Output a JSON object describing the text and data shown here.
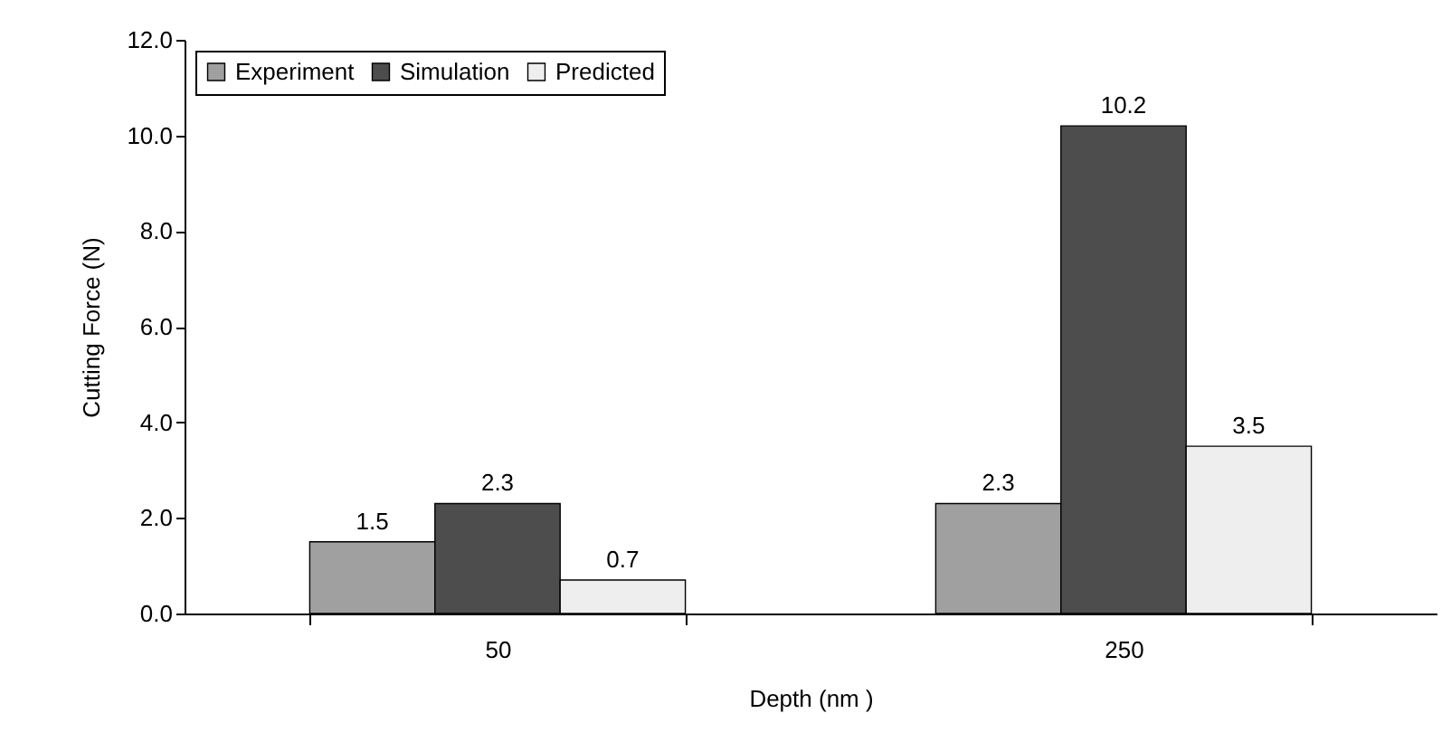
{
  "chart_data": {
    "type": "bar",
    "xlabel": "Depth (nm )",
    "ylabel": "Cutting Force (N)",
    "categories": [
      "50",
      "250"
    ],
    "series": [
      {
        "name": "Experiment",
        "color": "#a0a0a0",
        "values": [
          1.5,
          2.3
        ]
      },
      {
        "name": "Simulation",
        "color": "#4d4d4d",
        "values": [
          2.3,
          10.2
        ]
      },
      {
        "name": "Predicted",
        "color": "#eeeeee",
        "values": [
          0.7,
          3.5
        ]
      }
    ],
    "ylim": [
      0,
      12
    ],
    "yticks": [
      {
        "value": 0,
        "label": "0.0"
      },
      {
        "value": 2,
        "label": "2.0"
      },
      {
        "value": 4,
        "label": "4.0"
      },
      {
        "value": 6,
        "label": "6.0"
      },
      {
        "value": 8,
        "label": "8.0"
      },
      {
        "value": 10,
        "label": "10.0"
      },
      {
        "value": 12,
        "label": "12.0"
      }
    ],
    "grid": false,
    "legend": "top left",
    "data_labels": true
  }
}
